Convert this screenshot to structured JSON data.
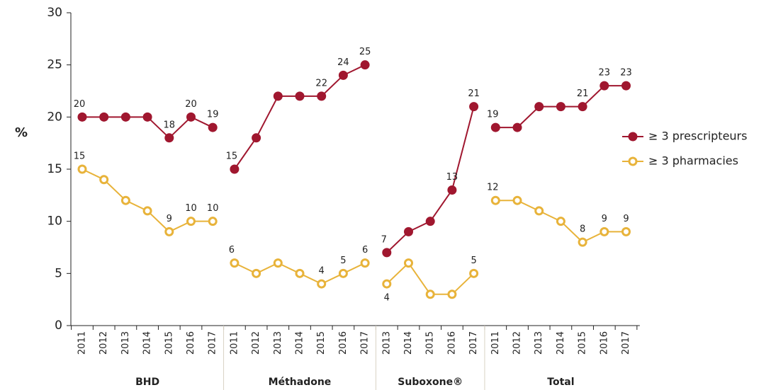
{
  "chart_data": {
    "type": "line",
    "y_label": "%",
    "ylim": [
      0,
      30
    ],
    "yticks": [
      0,
      5,
      10,
      15,
      20,
      25,
      30
    ],
    "groups": [
      {
        "name": "BHD",
        "categories": [
          "2011",
          "2012",
          "2013",
          "2014",
          "2015",
          "2016",
          "2017"
        ]
      },
      {
        "name": "Méthadone",
        "categories": [
          "2011",
          "2012",
          "2013",
          "2014",
          "2015",
          "2016",
          "2017"
        ]
      },
      {
        "name": "Suboxone®",
        "categories": [
          "2013",
          "2014",
          "2015",
          "2016",
          "2017"
        ]
      },
      {
        "name": "Total",
        "categories": [
          "2011",
          "2012",
          "2013",
          "2014",
          "2015",
          "2016",
          "2017"
        ]
      }
    ],
    "series": [
      {
        "name": "≥ 3 prescripteurs",
        "color": "#a0172f",
        "hollow": false,
        "values": [
          [
            20,
            20,
            20,
            20,
            18,
            20,
            19
          ],
          [
            15,
            18,
            22,
            22,
            22,
            24,
            25
          ],
          [
            7,
            9,
            10,
            13,
            21
          ],
          [
            19,
            19,
            21,
            21,
            21,
            23,
            23
          ]
        ],
        "value_labels": [
          [
            "20",
            null,
            null,
            null,
            "18",
            "20",
            "19"
          ],
          [
            "15",
            null,
            null,
            null,
            "22",
            "24",
            "25"
          ],
          [
            "7",
            null,
            null,
            "13",
            "21"
          ],
          [
            "19",
            null,
            null,
            null,
            "21",
            "23",
            "23"
          ]
        ]
      },
      {
        "name": "≥ 3 pharmacies",
        "color": "#e8b33a",
        "hollow": true,
        "values": [
          [
            15,
            14,
            12,
            11,
            9,
            10,
            10
          ],
          [
            6,
            5,
            6,
            5,
            4,
            5,
            6
          ],
          [
            4,
            6,
            3,
            3,
            5
          ],
          [
            12,
            12,
            11,
            10,
            8,
            9,
            9
          ]
        ],
        "value_labels": [
          [
            "15",
            null,
            null,
            null,
            "9",
            "10",
            "10"
          ],
          [
            "6",
            null,
            null,
            null,
            "4",
            "5",
            "6"
          ],
          [
            "4",
            null,
            null,
            null,
            "5"
          ],
          [
            "12",
            null,
            null,
            null,
            "8",
            "9",
            "9"
          ]
        ]
      }
    ]
  }
}
